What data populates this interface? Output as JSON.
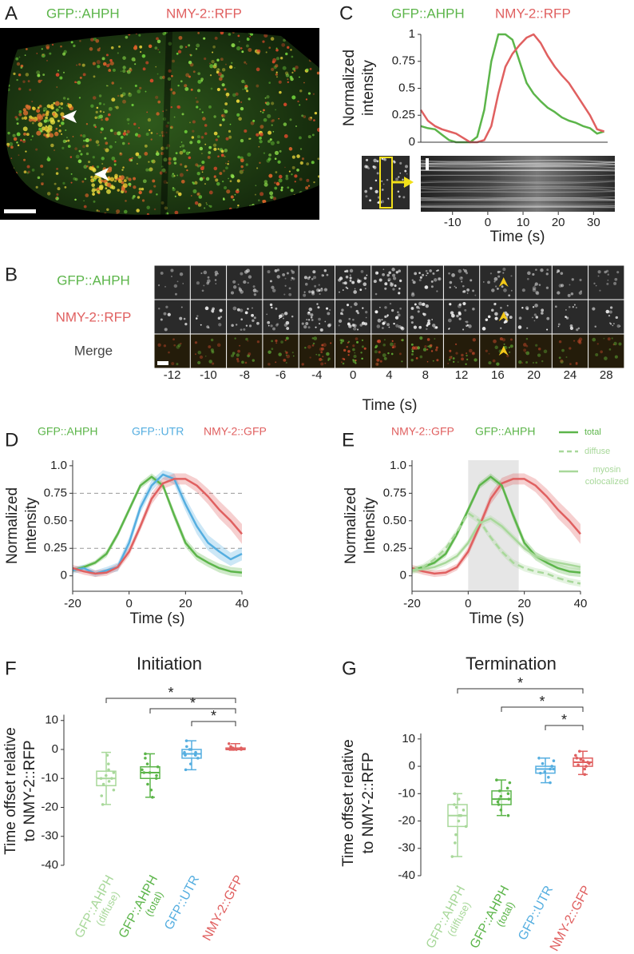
{
  "panel_a": {
    "label": "A",
    "channels": [
      {
        "name": "GFP::AHPH",
        "color": "#5cb54a"
      },
      {
        "name": "NMY-2::RFP",
        "color": "#e06060"
      }
    ]
  },
  "panel_b": {
    "label": "B",
    "rows": [
      {
        "name": "GFP::AHPH",
        "color": "#5cb54a"
      },
      {
        "name": "NMY-2::RFP",
        "color": "#e06060"
      },
      {
        "name": "Merge",
        "color": "#444444"
      }
    ],
    "times": [
      -12,
      -10,
      -8,
      -6,
      -4,
      0,
      4,
      8,
      12,
      16,
      20,
      24,
      28
    ],
    "xlabel": "Time (s)"
  },
  "chart_data": [
    {
      "type": "line",
      "panel_label": "C",
      "x": [
        -19,
        -17,
        -15,
        -13,
        -11,
        -9,
        -7,
        -5,
        -3,
        -1,
        1,
        3,
        5,
        7,
        9,
        11,
        13,
        15,
        17,
        19,
        21,
        23,
        25,
        27,
        29,
        31,
        33
      ],
      "series": [
        {
          "name": "GFP::AHPH",
          "color": "#5cb54a",
          "values": [
            0.15,
            0.13,
            0.12,
            0.07,
            0.02,
            0,
            0,
            0,
            0.05,
            0.3,
            0.75,
            1,
            1,
            0.95,
            0.75,
            0.55,
            0.45,
            0.38,
            0.32,
            0.28,
            0.23,
            0.2,
            0.18,
            0.15,
            0.13,
            0.08,
            0.1
          ]
        },
        {
          "name": "NMY-2::RFP",
          "color": "#e06060",
          "values": [
            0.3,
            0.2,
            0.15,
            0.12,
            0.1,
            0.08,
            0.04,
            0,
            0,
            0.02,
            0.15,
            0.45,
            0.7,
            0.82,
            0.9,
            0.97,
            1,
            0.92,
            0.8,
            0.7,
            0.62,
            0.55,
            0.45,
            0.35,
            0.25,
            0.12,
            0.1
          ]
        }
      ],
      "xlim": [
        -19,
        34
      ],
      "xticks": [
        -10,
        0,
        10,
        20,
        30
      ],
      "ylim": [
        0,
        1
      ],
      "yticks": [
        0,
        0.25,
        0.5,
        0.75,
        1
      ],
      "ylabel": [
        "Normalized",
        "intensity"
      ],
      "xlabel": "Time (s)"
    },
    {
      "type": "line",
      "panel_label": "D",
      "x": [
        -20,
        -16,
        -12,
        -8,
        -4,
        0,
        4,
        8,
        12,
        16,
        20,
        24,
        28,
        32,
        36,
        40
      ],
      "series": [
        {
          "name": "GFP::AHPH",
          "color": "#5cb54a",
          "values": [
            0.05,
            0.08,
            0.12,
            0.2,
            0.38,
            0.6,
            0.82,
            0.9,
            0.82,
            0.55,
            0.3,
            0.18,
            0.12,
            0.07,
            0.04,
            0.03
          ],
          "error": [
            0.02,
            0.02,
            0.02,
            0.03,
            0.03,
            0.03,
            0.03,
            0.03,
            0.03,
            0.04,
            0.04,
            0.04,
            0.04,
            0.04,
            0.04,
            0.04
          ]
        },
        {
          "name": "GFP::UTR",
          "color": "#55aee0",
          "values": [
            0.05,
            0.07,
            0.02,
            0.05,
            0.08,
            0.3,
            0.62,
            0.82,
            0.92,
            0.88,
            0.65,
            0.45,
            0.3,
            0.22,
            0.15,
            0.2
          ],
          "error": [
            0.03,
            0.03,
            0.03,
            0.03,
            0.04,
            0.05,
            0.05,
            0.05,
            0.04,
            0.05,
            0.06,
            0.07,
            0.07,
            0.07,
            0.06,
            0.06
          ]
        },
        {
          "name": "NMY-2::GFP",
          "color": "#e06060",
          "values": [
            0.07,
            0.04,
            0.02,
            0.03,
            0.08,
            0.22,
            0.45,
            0.7,
            0.84,
            0.88,
            0.88,
            0.82,
            0.72,
            0.6,
            0.5,
            0.38
          ],
          "error": [
            0.03,
            0.03,
            0.03,
            0.03,
            0.03,
            0.04,
            0.04,
            0.05,
            0.05,
            0.05,
            0.05,
            0.06,
            0.07,
            0.08,
            0.08,
            0.09
          ]
        }
      ],
      "xlim": [
        -20,
        40
      ],
      "xticks": [
        -20,
        0,
        20,
        40
      ],
      "ylim": [
        -0.14,
        1.05
      ],
      "yticks": [
        0,
        0.25,
        {
          "value": 0.5,
          "label": "0.50"
        },
        0.75,
        {
          "value": 1,
          "label": "1.0"
        }
      ],
      "hlines": [
        0.25,
        0.75
      ],
      "ylabel": [
        "Normalized",
        "Intensity"
      ],
      "xlabel": "Time (s)"
    },
    {
      "type": "line",
      "panel_label": "E",
      "x": [
        -20,
        -16,
        -12,
        -8,
        -4,
        0,
        4,
        8,
        12,
        16,
        20,
        24,
        28,
        32,
        36,
        40
      ],
      "series": [
        {
          "name": "NMY-2::GFP",
          "color": "#e06060",
          "values": [
            0.07,
            0.04,
            0.02,
            0.03,
            0.08,
            0.22,
            0.45,
            0.7,
            0.84,
            0.88,
            0.88,
            0.82,
            0.72,
            0.6,
            0.5,
            0.38
          ],
          "error": [
            0.03,
            0.03,
            0.03,
            0.03,
            0.03,
            0.04,
            0.04,
            0.05,
            0.05,
            0.05,
            0.05,
            0.06,
            0.07,
            0.08,
            0.08,
            0.09
          ]
        },
        {
          "name": "GFP::AHPH",
          "color": "#5cb54a",
          "values": [
            0.05,
            0.08,
            0.12,
            0.2,
            0.38,
            0.6,
            0.82,
            0.9,
            0.82,
            0.55,
            0.3,
            0.18,
            0.12,
            0.07,
            0.04,
            0.03
          ],
          "error": [
            0.02,
            0.02,
            0.02,
            0.03,
            0.03,
            0.03,
            0.03,
            0.03,
            0.03,
            0.04,
            0.04,
            0.04,
            0.04,
            0.04,
            0.04,
            0.04
          ]
        },
        {
          "color": "#a8d89a",
          "dash": true,
          "values": [
            0.05,
            0.08,
            0.15,
            0.25,
            0.4,
            0.57,
            0.5,
            0.35,
            0.22,
            0.12,
            0.07,
            0.04,
            0.02,
            -0.02,
            -0.05,
            -0.07
          ],
          "error": [
            0.03,
            0.03,
            0.03,
            0.03,
            0.03,
            0.03,
            0.03,
            0.03,
            0.03,
            0.03,
            0.03,
            0.03,
            0.03,
            0.03,
            0.03,
            0.03
          ]
        },
        {
          "color": "#a8d89a",
          "values": [
            0.05,
            0.06,
            0.08,
            0.12,
            0.18,
            0.3,
            0.48,
            0.52,
            0.45,
            0.35,
            0.25,
            0.18,
            0.14,
            0.12,
            0.1,
            0.08
          ],
          "error": [
            0.03,
            0.03,
            0.03,
            0.03,
            0.03,
            0.03,
            0.03,
            0.03,
            0.03,
            0.03,
            0.03,
            0.03,
            0.03,
            0.03,
            0.03,
            0.03
          ]
        }
      ],
      "style_legend": [
        {
          "lines": [
            "total"
          ],
          "color": "#5cb54a"
        },
        {
          "lines": [
            "diffuse"
          ],
          "color": "#a8d89a",
          "dash": true
        },
        {
          "lines": [
            "myosin",
            "colocalized"
          ],
          "color": "#a8d89a"
        }
      ],
      "highlight": [
        0,
        18
      ],
      "xlim": [
        -20,
        40
      ],
      "xticks": [
        -20,
        0,
        20,
        40
      ],
      "ylim": [
        -0.14,
        1.05
      ],
      "yticks": [
        0,
        0.25,
        {
          "value": 0.5,
          "label": "0.50"
        },
        0.75,
        {
          "value": 1,
          "label": "1.0"
        }
      ],
      "ylabel": [
        "Normalized",
        "Intensity"
      ],
      "xlabel": "Time (s)"
    },
    {
      "type": "box",
      "panel_label": "F",
      "title": "Initiation",
      "categories": [
        [
          "GFP::AHPH",
          "(diffuse)"
        ],
        [
          "GFP::AHPH",
          "(total)"
        ],
        [
          "GFP::UTR"
        ],
        [
          "NMY-2::GFP"
        ]
      ],
      "colors": [
        "#a8d89a",
        "#5cb54a",
        "#55aee0",
        "#e06060"
      ],
      "median": [
        -10,
        -8,
        -1.5,
        0
      ],
      "q1": [
        -12.5,
        -10,
        -3,
        0
      ],
      "q3": [
        -7.5,
        -6,
        0,
        0.5
      ],
      "whisker_low": [
        -19,
        -16.5,
        -7,
        0
      ],
      "whisker_high": [
        -1,
        -1.5,
        3,
        2
      ],
      "points": [
        [
          -19,
          -16,
          -14,
          -12,
          -11,
          -10,
          -10,
          -9,
          -8,
          -7,
          -5,
          -2
        ],
        [
          -16.5,
          -14,
          -12,
          -10,
          -9,
          -8,
          -8,
          -7,
          -6,
          -5,
          -3,
          -1.5
        ],
        [
          -7,
          -5,
          -3,
          -2,
          -2,
          -1,
          -1,
          0,
          0,
          1,
          3
        ],
        [
          0,
          0,
          0,
          0,
          0,
          0,
          0.5,
          0.5,
          1,
          2
        ]
      ],
      "significance": [
        {
          "pair": [
            0,
            3
          ],
          "label": "*"
        },
        {
          "pair": [
            1,
            3
          ],
          "label": "*"
        },
        {
          "pair": [
            2,
            3
          ],
          "label": "*"
        }
      ],
      "ylim": [
        -40,
        12
      ],
      "yticks": [
        -40,
        -30,
        -20,
        -10,
        0,
        10
      ],
      "ylabel": [
        "Time offset relative",
        "to NMY-2::RFP"
      ]
    },
    {
      "type": "box",
      "panel_label": "G",
      "title": "Termination",
      "categories": [
        [
          "GFP::AHPH",
          "(diffuse)"
        ],
        [
          "GFP::AHPH",
          "(total)"
        ],
        [
          "GFP::UTR"
        ],
        [
          "NMY-2::GFP"
        ]
      ],
      "colors": [
        "#a8d89a",
        "#5cb54a",
        "#55aee0",
        "#e06060"
      ],
      "median": [
        -18,
        -12,
        -1,
        1.5
      ],
      "q1": [
        -22,
        -14,
        -2.5,
        0
      ],
      "q3": [
        -14,
        -9,
        0,
        3
      ],
      "whisker_low": [
        -33,
        -18,
        -6,
        -3
      ],
      "whisker_high": [
        -10,
        -5,
        3,
        5.5
      ],
      "points": [
        [
          -33,
          -28,
          -25,
          -22,
          -20,
          -18,
          -18,
          -16,
          -15,
          -14,
          -12,
          -10
        ],
        [
          -18,
          -16,
          -14,
          -13,
          -12,
          -12,
          -11,
          -10,
          -9,
          -8,
          -6,
          -5
        ],
        [
          -6,
          -4,
          -2.5,
          -2,
          -1,
          -1,
          0,
          0,
          1,
          2,
          3
        ],
        [
          -3,
          -1,
          0,
          0.5,
          1,
          1.5,
          2,
          2.5,
          3,
          4,
          5.5
        ]
      ],
      "significance": [
        {
          "pair": [
            0,
            3
          ],
          "label": "*"
        },
        {
          "pair": [
            1,
            3
          ],
          "label": "*"
        },
        {
          "pair": [
            2,
            3
          ],
          "label": "*"
        }
      ],
      "ylim": [
        -40,
        12
      ],
      "yticks": [
        -40,
        -30,
        -20,
        -10,
        0,
        10
      ],
      "ylabel": [
        "Time offset relative",
        "to NMY-2::RFP"
      ]
    }
  ]
}
